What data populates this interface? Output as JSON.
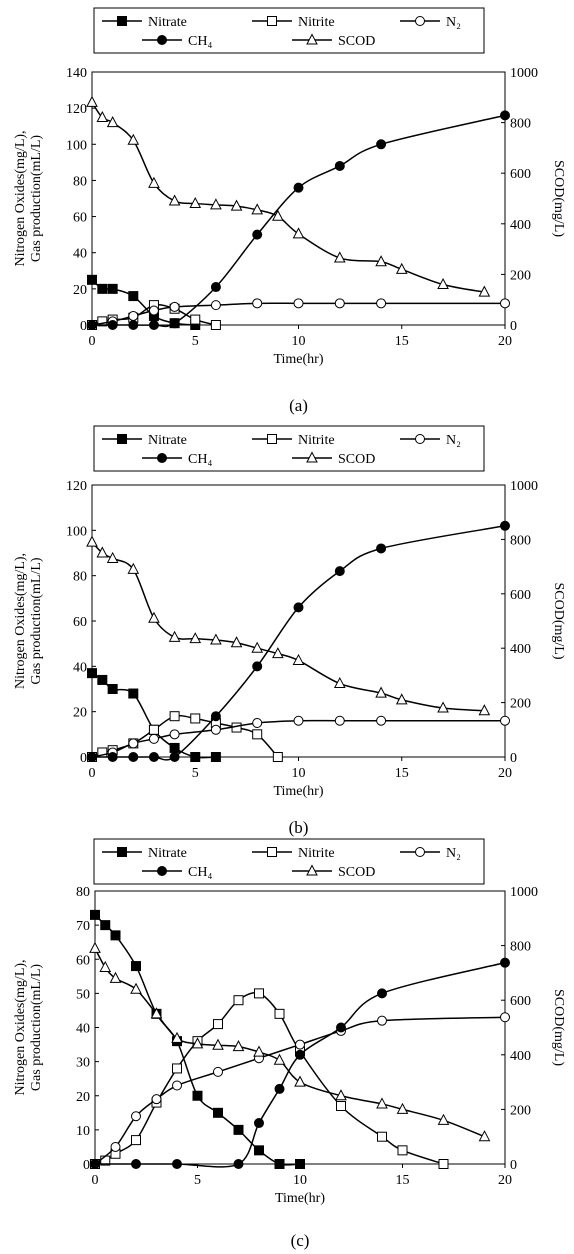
{
  "chart_data": [
    {
      "type": "line",
      "panel_label": "(a)",
      "xlabel": "Time(hr)",
      "ylabel_left": [
        "Nitrogen Oxides(mg/L),",
        "Gas production(mL/L)"
      ],
      "ylabel_right": "SCOD(mg/L)",
      "xlim": [
        0,
        20
      ],
      "xticks": [
        0,
        5,
        10,
        15,
        20
      ],
      "ylim_left": [
        0,
        140
      ],
      "yticks_left": [
        0,
        20,
        40,
        60,
        80,
        100,
        120,
        140
      ],
      "ylim_right": [
        0,
        1000
      ],
      "yticks_right": [
        0,
        200,
        400,
        600,
        800,
        1000
      ],
      "legend": {
        "position": "top",
        "entries": [
          "Nitrate",
          "Nitrite",
          "N₂",
          "CH₄",
          "SCOD"
        ]
      },
      "series": [
        {
          "name": "Nitrate",
          "marker": "filled-square",
          "axis": "left",
          "x": [
            0,
            0.5,
            1,
            2,
            3,
            4,
            5
          ],
          "y": [
            25,
            20,
            20,
            16,
            5,
            1,
            0
          ]
        },
        {
          "name": "Nitrite",
          "marker": "open-square",
          "axis": "left",
          "x": [
            0,
            0.5,
            1,
            2,
            3,
            4,
            5,
            6
          ],
          "y": [
            0,
            2,
            3,
            4,
            11,
            9,
            3,
            0
          ]
        },
        {
          "name": "N₂",
          "marker": "open-circle",
          "axis": "left",
          "x": [
            0,
            1,
            2,
            3,
            4,
            6,
            8,
            10,
            12,
            14,
            20
          ],
          "y": [
            0,
            2,
            5,
            8,
            10,
            11,
            12,
            12,
            12,
            12,
            12
          ]
        },
        {
          "name": "CH₄",
          "marker": "filled-circle",
          "axis": "left",
          "x": [
            0,
            1,
            2,
            3,
            4,
            6,
            8,
            10,
            12,
            14,
            20
          ],
          "y": [
            0,
            0,
            0,
            0,
            1,
            21,
            50,
            76,
            88,
            100,
            116
          ]
        },
        {
          "name": "SCOD",
          "marker": "open-triangle",
          "axis": "right",
          "x": [
            0,
            0.5,
            1,
            2,
            3,
            4,
            5,
            6,
            7,
            8,
            9,
            10,
            12,
            14,
            15,
            17,
            19
          ],
          "y": [
            880,
            820,
            800,
            730,
            560,
            490,
            480,
            475,
            470,
            455,
            430,
            360,
            265,
            250,
            220,
            160,
            130
          ]
        }
      ]
    },
    {
      "type": "line",
      "panel_label": "(b)",
      "xlabel": "Time(hr)",
      "ylabel_left": [
        "Nitrogen Oxides(mg/L),",
        "Gas production(mL/L)"
      ],
      "ylabel_right": "SCOD(mg/L)",
      "xlim": [
        0,
        20
      ],
      "xticks": [
        0,
        5,
        10,
        15,
        20
      ],
      "ylim_left": [
        0,
        120
      ],
      "yticks_left": [
        0,
        20,
        40,
        60,
        80,
        100,
        120
      ],
      "ylim_right": [
        0,
        1000
      ],
      "yticks_right": [
        0,
        200,
        400,
        600,
        800,
        1000
      ],
      "legend": {
        "position": "top",
        "entries": [
          "Nitrate",
          "Nitrite",
          "N₂",
          "CH₄",
          "SCOD"
        ]
      },
      "series": [
        {
          "name": "Nitrate",
          "marker": "filled-square",
          "axis": "left",
          "x": [
            0,
            0.5,
            1,
            2,
            3,
            4,
            5,
            6
          ],
          "y": [
            37,
            34,
            30,
            28,
            12,
            4,
            0,
            0
          ]
        },
        {
          "name": "Nitrite",
          "marker": "open-square",
          "axis": "left",
          "x": [
            0,
            0.5,
            1,
            2,
            3,
            4,
            5,
            6,
            7,
            8,
            9
          ],
          "y": [
            0,
            2,
            3,
            6,
            12,
            18,
            17,
            15,
            13,
            10,
            0
          ]
        },
        {
          "name": "N₂",
          "marker": "open-circle",
          "axis": "left",
          "x": [
            0,
            1,
            2,
            3,
            4,
            6,
            8,
            10,
            12,
            14,
            20
          ],
          "y": [
            0,
            2,
            6,
            8,
            10,
            12,
            15,
            16,
            16,
            16,
            16
          ]
        },
        {
          "name": "CH₄",
          "marker": "filled-circle",
          "axis": "left",
          "x": [
            0,
            1,
            2,
            3,
            4,
            6,
            8,
            10,
            12,
            14,
            20
          ],
          "y": [
            0,
            0,
            0,
            0,
            0,
            18,
            40,
            66,
            82,
            92,
            102
          ]
        },
        {
          "name": "SCOD",
          "marker": "open-triangle",
          "axis": "right",
          "x": [
            0,
            0.5,
            1,
            2,
            3,
            4,
            5,
            6,
            7,
            8,
            9,
            10,
            12,
            14,
            15,
            17,
            19
          ],
          "y": [
            790,
            750,
            730,
            690,
            510,
            440,
            435,
            430,
            420,
            400,
            380,
            355,
            270,
            235,
            210,
            180,
            170
          ]
        }
      ]
    },
    {
      "type": "line",
      "panel_label": "(c)",
      "xlabel": "Time(hr)",
      "ylabel_left": [
        "Nitrogen Oxides(mg/L),",
        "Gas production(mL/L)"
      ],
      "ylabel_right": "SCOD(mg/L)",
      "xlim": [
        0,
        20
      ],
      "xticks": [
        0,
        5,
        10,
        15,
        20
      ],
      "ylim_left": [
        0,
        80
      ],
      "yticks_left": [
        0,
        10,
        20,
        30,
        40,
        50,
        60,
        70,
        80
      ],
      "ylim_right": [
        0,
        1000
      ],
      "yticks_right": [
        0,
        200,
        400,
        600,
        800,
        1000
      ],
      "legend": {
        "position": "top",
        "entries": [
          "Nitrate",
          "Nitrite",
          "N₂",
          "CH₄",
          "SCOD"
        ]
      },
      "series": [
        {
          "name": "Nitrate",
          "marker": "filled-square",
          "axis": "left",
          "x": [
            0,
            0.5,
            1,
            2,
            3,
            4,
            5,
            6,
            7,
            8,
            9,
            10
          ],
          "y": [
            73,
            70,
            67,
            58,
            44,
            36,
            20,
            15,
            10,
            4,
            0,
            0
          ]
        },
        {
          "name": "Nitrite",
          "marker": "open-square",
          "axis": "left",
          "x": [
            0,
            0.5,
            1,
            2,
            3,
            4,
            5,
            6,
            7,
            8,
            9,
            10,
            12,
            14,
            15,
            17
          ],
          "y": [
            0,
            1,
            3,
            7,
            18,
            28,
            36,
            41,
            48,
            50,
            44,
            33,
            17,
            8,
            4,
            0
          ]
        },
        {
          "name": "N₂",
          "marker": "open-circle",
          "axis": "left",
          "x": [
            0,
            1,
            2,
            3,
            4,
            6,
            8,
            10,
            12,
            14,
            20
          ],
          "y": [
            0,
            5,
            14,
            19,
            23,
            27,
            31,
            35,
            39,
            42,
            43
          ]
        },
        {
          "name": "CH₄",
          "marker": "filled-circle",
          "axis": "left",
          "x": [
            0,
            2,
            4,
            7,
            8,
            9,
            10,
            12,
            14,
            20
          ],
          "y": [
            0,
            0,
            0,
            0,
            12,
            22,
            32,
            40,
            50,
            59
          ]
        },
        {
          "name": "SCOD",
          "marker": "open-triangle",
          "axis": "right",
          "x": [
            0,
            0.5,
            1,
            2,
            3,
            4,
            5,
            6,
            7,
            8,
            9,
            10,
            12,
            14,
            15,
            17,
            19
          ],
          "y": [
            790,
            720,
            680,
            640,
            550,
            460,
            440,
            435,
            430,
            410,
            380,
            300,
            250,
            220,
            200,
            160,
            100
          ]
        }
      ]
    }
  ]
}
